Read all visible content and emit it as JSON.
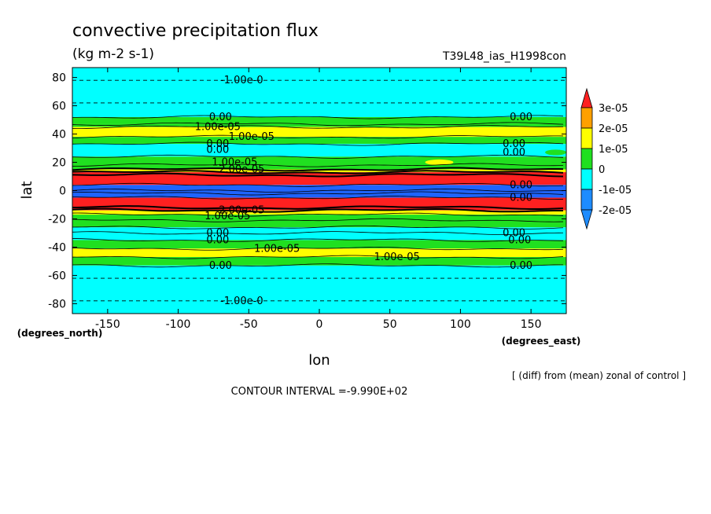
{
  "chart_data": {
    "type": "heatmap",
    "title": "convective precipitation flux",
    "units": "(kg m-2 s-1)",
    "run_label": "T39L48_ias_H1998con",
    "xlabel": "lon",
    "ylabel": "lat",
    "x_unit_label": "(degrees_east)",
    "y_unit_label": "(degrees_north)",
    "xlim": [
      -175,
      175
    ],
    "ylim": [
      -87,
      87
    ],
    "x_ticks": [
      -150,
      -100,
      -50,
      0,
      50,
      100,
      150
    ],
    "y_ticks": [
      -80,
      -60,
      -40,
      -20,
      0,
      20,
      40,
      60,
      80
    ],
    "x_tick_labels": [
      "-150",
      "-100",
      "-50",
      "0",
      "50",
      "100",
      "150"
    ],
    "y_tick_labels": [
      "-80",
      "-60",
      "-40",
      "-20",
      "0",
      "20",
      "40",
      "60",
      "80"
    ],
    "subtitle_note": "[ (diff) from (mean) zonal of control ]",
    "contour_interval": "CONTOUR INTERVAL =-9.990E+02",
    "colors": {
      "red": "#ff2020",
      "orange": "#ffa000",
      "yellow": "#ffff00",
      "green": "#20e020",
      "cyan": "#00ffff",
      "blue": "#1e64ff",
      "darkblue": "#1e8cff"
    },
    "bands": [
      {
        "lat0": 52,
        "lat1": 87,
        "level": "cyan"
      },
      {
        "lat0": 47,
        "lat1": 52,
        "level": "green"
      },
      {
        "lat0": 45,
        "lat1": 47,
        "level": "green"
      },
      {
        "lat0": 38,
        "lat1": 45,
        "level": "yellow"
      },
      {
        "lat0": 33,
        "lat1": 38,
        "level": "green"
      },
      {
        "lat0": 24,
        "lat1": 33,
        "level": "cyan"
      },
      {
        "lat0": 15,
        "lat1": 24,
        "level": "green"
      },
      {
        "lat0": 13,
        "lat1": 15,
        "level": "yellow"
      },
      {
        "lat0": 4,
        "lat1": 13,
        "level": "red"
      },
      {
        "lat0": -5,
        "lat1": 4,
        "level": "blue"
      },
      {
        "lat0": -14,
        "lat1": -5,
        "level": "red"
      },
      {
        "lat0": -17,
        "lat1": -14,
        "level": "yellow"
      },
      {
        "lat0": -26,
        "lat1": -17,
        "level": "green"
      },
      {
        "lat0": -35,
        "lat1": -26,
        "level": "cyan"
      },
      {
        "lat0": -41,
        "lat1": -35,
        "level": "green"
      },
      {
        "lat0": -47,
        "lat1": -41,
        "level": "yellow"
      },
      {
        "lat0": -53,
        "lat1": -47,
        "level": "green"
      },
      {
        "lat0": -87,
        "lat1": -53,
        "level": "cyan"
      }
    ],
    "patches": [
      {
        "lon0": -175,
        "lon1": -110,
        "lat0": 38,
        "lat1": 44,
        "level": "yellow"
      },
      {
        "lon0": 120,
        "lon1": 175,
        "lat0": 38,
        "lat1": 44,
        "level": "yellow"
      },
      {
        "lon0": 75,
        "lon1": 95,
        "lat0": 18,
        "lat1": 22,
        "level": "yellow"
      },
      {
        "lon0": 160,
        "lon1": 175,
        "lat0": 25,
        "lat1": 29,
        "level": "green"
      }
    ],
    "dashed_lines": [
      {
        "lat": 78
      },
      {
        "lat": 62
      },
      {
        "lat": -62
      },
      {
        "lat": -78
      }
    ],
    "contour_lines": [
      52,
      47,
      45,
      38,
      33,
      24,
      18,
      15,
      13,
      11,
      4,
      0,
      -2,
      -5,
      -12,
      -14,
      -17,
      -21,
      -26,
      -30,
      -35,
      -41,
      -47,
      -53
    ],
    "contour_labels": [
      {
        "text": "-1.00e-0",
        "lon": -55,
        "lat": 78
      },
      {
        "text": "0.00",
        "lon": -70,
        "lat": 52
      },
      {
        "text": "0.00",
        "lon": 143,
        "lat": 52
      },
      {
        "text": "1.00e-05",
        "lon": -72,
        "lat": 45
      },
      {
        "text": "1.00e-05",
        "lon": -48,
        "lat": 38
      },
      {
        "text": "0.00",
        "lon": -72,
        "lat": 33
      },
      {
        "text": "0.00",
        "lon": -72,
        "lat": 29
      },
      {
        "text": "0.00",
        "lon": 138,
        "lat": 33
      },
      {
        "text": "0.00",
        "lon": 138,
        "lat": 27
      },
      {
        "text": "1.00e-05",
        "lon": -60,
        "lat": 20
      },
      {
        "text": "2.00e-05",
        "lon": -55,
        "lat": 15
      },
      {
        "text": "0.00",
        "lon": 143,
        "lat": 4
      },
      {
        "text": "0.00",
        "lon": 143,
        "lat": -5
      },
      {
        "text": "2.00e-05",
        "lon": -55,
        "lat": -14
      },
      {
        "text": "1.00e-05",
        "lon": -65,
        "lat": -18
      },
      {
        "text": "0.00",
        "lon": -72,
        "lat": -30
      },
      {
        "text": "0.00",
        "lon": -72,
        "lat": -35
      },
      {
        "text": "0.00",
        "lon": 138,
        "lat": -30
      },
      {
        "text": "0.00",
        "lon": 142,
        "lat": -35
      },
      {
        "text": "1.00e-05",
        "lon": -30,
        "lat": -41
      },
      {
        "text": "1.00e-05",
        "lon": 55,
        "lat": -47
      },
      {
        "text": "0.00",
        "lon": -70,
        "lat": -53
      },
      {
        "text": "0.00",
        "lon": 143,
        "lat": -53
      },
      {
        "text": "-1.00e-0",
        "lon": -55,
        "lat": -78
      }
    ],
    "legend": {
      "levels": [
        "red",
        "orange",
        "yellow",
        "green",
        "cyan",
        "darkblue"
      ],
      "top_arrow": "red",
      "bottom_arrow": "darkblue",
      "labels": [
        "3e-05",
        "2e-05",
        "1e-05",
        "0",
        "-1e-05",
        "-2e-05"
      ],
      "placement": "right"
    }
  }
}
